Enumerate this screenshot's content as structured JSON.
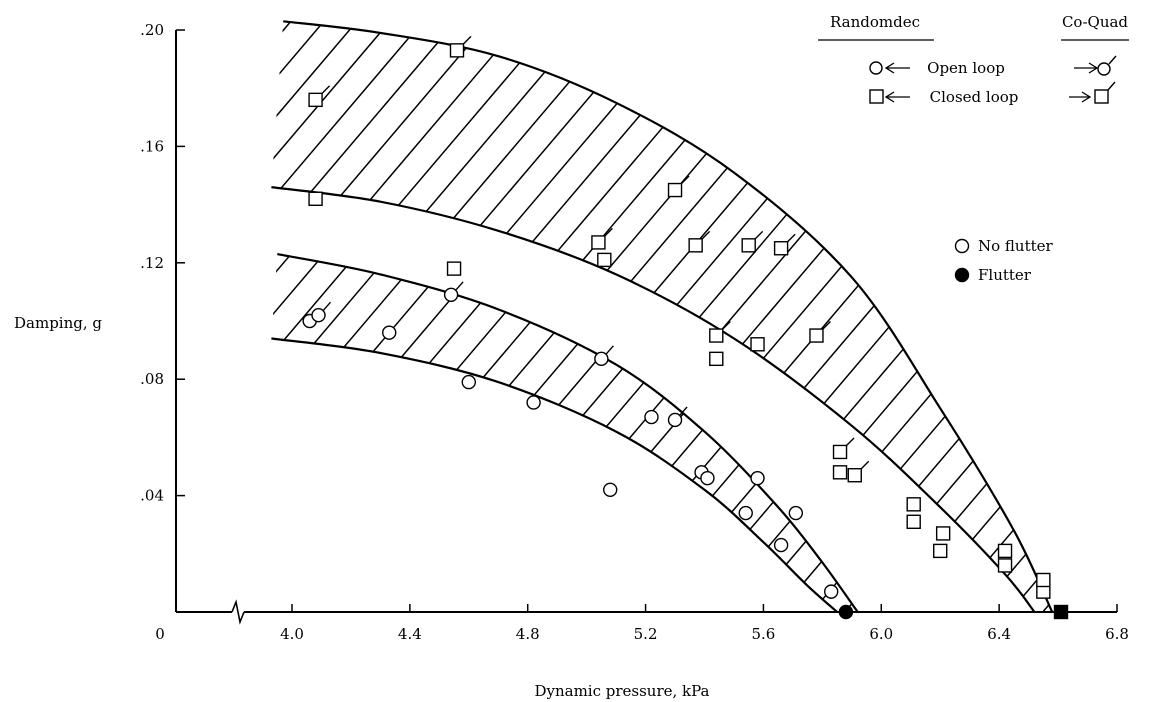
{
  "chart_data": {
    "type": "scatter",
    "xlabel": "Dynamic pressure, kPa",
    "ylabel": "Damping, g",
    "xlim": [
      3.6,
      6.8
    ],
    "ylim": [
      0,
      0.2
    ],
    "x_ticks": [
      {
        "value": 4.0,
        "label": "4.0"
      },
      {
        "value": 4.4,
        "label": "4.4"
      },
      {
        "value": 4.8,
        "label": "4.8"
      },
      {
        "value": 5.2,
        "label": "5.2"
      },
      {
        "value": 5.6,
        "label": "5.6"
      },
      {
        "value": 6.0,
        "label": "6.0"
      },
      {
        "value": 6.4,
        "label": "6.4"
      },
      {
        "value": 6.8,
        "label": "6.8"
      }
    ],
    "x_origin_label": "0",
    "x_axis_break": true,
    "y_ticks": [
      {
        "value": 0.04,
        "label": ".04"
      },
      {
        "value": 0.08,
        "label": ".08"
      },
      {
        "value": 0.12,
        "label": ".12"
      },
      {
        "value": 0.16,
        "label": ".16"
      },
      {
        "value": 0.2,
        "label": ".20"
      }
    ],
    "grid": false,
    "legend": {
      "method_headers": [
        "Randomdec",
        "Co-Quad"
      ],
      "mode_rows": [
        {
          "label": "Open loop",
          "marker": "circle"
        },
        {
          "label": "Closed loop",
          "marker": "square"
        }
      ],
      "status_rows": [
        {
          "label": "No flutter",
          "marker": "open-circle"
        },
        {
          "label": "Flutter",
          "marker": "filled-circle"
        }
      ]
    },
    "bands": [
      {
        "name": "Closed loop",
        "upper": [
          [
            3.97,
            0.203
          ],
          [
            4.3,
            0.199
          ],
          [
            4.7,
            0.191
          ],
          [
            5.1,
            0.175
          ],
          [
            5.5,
            0.151
          ],
          [
            5.9,
            0.115
          ],
          [
            6.2,
            0.07
          ],
          [
            6.45,
            0.028
          ],
          [
            6.58,
            0.0
          ]
        ],
        "lower": [
          [
            3.93,
            0.146
          ],
          [
            4.3,
            0.141
          ],
          [
            4.7,
            0.131
          ],
          [
            5.1,
            0.116
          ],
          [
            5.5,
            0.094
          ],
          [
            5.9,
            0.064
          ],
          [
            6.2,
            0.036
          ],
          [
            6.42,
            0.013
          ],
          [
            6.52,
            0.0
          ]
        ]
      },
      {
        "name": "Open loop",
        "upper": [
          [
            3.95,
            0.123
          ],
          [
            4.3,
            0.116
          ],
          [
            4.7,
            0.104
          ],
          [
            5.1,
            0.085
          ],
          [
            5.4,
            0.062
          ],
          [
            5.65,
            0.036
          ],
          [
            5.8,
            0.017
          ],
          [
            5.92,
            0.0
          ]
        ],
        "lower": [
          [
            3.93,
            0.094
          ],
          [
            4.3,
            0.089
          ],
          [
            4.7,
            0.079
          ],
          [
            5.1,
            0.062
          ],
          [
            5.4,
            0.042
          ],
          [
            5.6,
            0.024
          ],
          [
            5.75,
            0.009
          ],
          [
            5.85,
            0.0
          ]
        ]
      }
    ],
    "series": [
      {
        "name": "Open loop",
        "method": "Randomdec",
        "marker": "circle",
        "points": [
          [
            4.06,
            0.1
          ],
          [
            4.33,
            0.096
          ],
          [
            4.6,
            0.079
          ],
          [
            4.82,
            0.072
          ],
          [
            5.08,
            0.042
          ],
          [
            5.22,
            0.067
          ],
          [
            5.39,
            0.048
          ],
          [
            5.41,
            0.046
          ],
          [
            5.54,
            0.034
          ],
          [
            5.58,
            0.046
          ],
          [
            5.66,
            0.023
          ],
          [
            5.71,
            0.034
          ],
          [
            5.83,
            0.007
          ]
        ]
      },
      {
        "name": "Open loop",
        "method": "Co-Quad",
        "marker": "circle-flag",
        "points": [
          [
            4.09,
            0.102
          ],
          [
            4.54,
            0.109
          ],
          [
            5.05,
            0.087
          ],
          [
            5.3,
            0.066
          ]
        ]
      },
      {
        "name": "Closed loop",
        "method": "Randomdec",
        "marker": "square",
        "points": [
          [
            4.08,
            0.142
          ],
          [
            4.55,
            0.118
          ],
          [
            5.06,
            0.121
          ],
          [
            5.44,
            0.087
          ],
          [
            5.58,
            0.092
          ],
          [
            5.86,
            0.048
          ],
          [
            6.11,
            0.037
          ],
          [
            6.11,
            0.031
          ],
          [
            6.2,
            0.021
          ],
          [
            6.21,
            0.027
          ],
          [
            6.42,
            0.016
          ],
          [
            6.42,
            0.021
          ],
          [
            6.55,
            0.007
          ],
          [
            6.55,
            0.011
          ]
        ]
      },
      {
        "name": "Closed loop",
        "method": "Co-Quad",
        "marker": "square-flag",
        "points": [
          [
            4.08,
            0.176
          ],
          [
            4.56,
            0.193
          ],
          [
            5.04,
            0.127
          ],
          [
            5.3,
            0.145
          ],
          [
            5.37,
            0.126
          ],
          [
            5.44,
            0.095
          ],
          [
            5.55,
            0.126
          ],
          [
            5.66,
            0.125
          ],
          [
            5.78,
            0.095
          ],
          [
            5.86,
            0.055
          ],
          [
            5.91,
            0.047
          ]
        ]
      },
      {
        "name": "Flutter",
        "method": "Randomdec",
        "marker": "filled-circle",
        "points": [
          [
            5.88,
            0.0
          ]
        ]
      },
      {
        "name": "Flutter",
        "method": "Randomdec",
        "marker": "filled-square",
        "points": [
          [
            6.61,
            0.0
          ]
        ]
      }
    ]
  }
}
